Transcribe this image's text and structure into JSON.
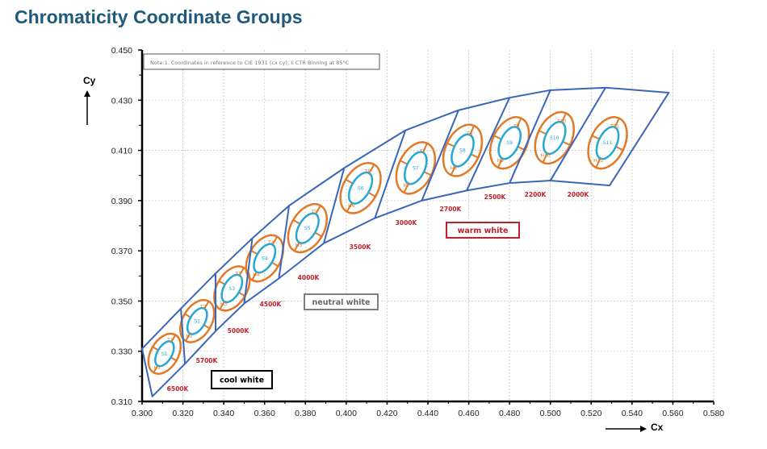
{
  "chart_data": {
    "type": "scatter",
    "title": "Chromaticity Coordinate Groups",
    "xlabel": "Cx",
    "ylabel": "Cy",
    "xlim": [
      0.3,
      0.58
    ],
    "ylim": [
      0.31,
      0.45
    ],
    "x_ticks": [
      "0.300",
      "0.320",
      "0.340",
      "0.360",
      "0.380",
      "0.400",
      "0.420",
      "0.440",
      "0.460",
      "0.480",
      "0.500",
      "0.520",
      "0.540",
      "0.560",
      "0.580"
    ],
    "y_ticks": [
      "0.450",
      "0.430",
      "0.410",
      "0.390",
      "0.370",
      "0.350",
      "0.330",
      "0.310"
    ],
    "grid": true,
    "note": "Note:1. Coordinates in reference to CIE 1931 (cx cy); Ii CTR Binning at 85°C",
    "boundary_upper": [
      [
        0.3,
        0.331
      ],
      [
        0.319,
        0.347
      ],
      [
        0.336,
        0.361
      ],
      [
        0.354,
        0.375
      ],
      [
        0.372,
        0.388
      ],
      [
        0.399,
        0.403
      ],
      [
        0.429,
        0.418
      ],
      [
        0.455,
        0.426
      ],
      [
        0.48,
        0.431
      ],
      [
        0.5,
        0.434
      ],
      [
        0.527,
        0.435
      ],
      [
        0.558,
        0.433
      ]
    ],
    "boundary_lower": [
      [
        0.305,
        0.312
      ],
      [
        0.321,
        0.325
      ],
      [
        0.336,
        0.338
      ],
      [
        0.35,
        0.349
      ],
      [
        0.367,
        0.359
      ],
      [
        0.389,
        0.373
      ],
      [
        0.414,
        0.383
      ],
      [
        0.437,
        0.39
      ],
      [
        0.459,
        0.394
      ],
      [
        0.48,
        0.397
      ],
      [
        0.5,
        0.398
      ],
      [
        0.529,
        0.396
      ]
    ],
    "cct_labels": [
      "6500K",
      "5700K",
      "5000K",
      "4500K",
      "4000K",
      "3500K",
      "3000K",
      "2700K",
      "2500K",
      "2200K",
      "2000K"
    ],
    "groups": [
      {
        "inner": "S1",
        "top": "T1",
        "bottom": "H1",
        "center": [
          0.311,
          0.329
        ]
      },
      {
        "inner": "S2",
        "top": "T2",
        "bottom": "H2",
        "center": [
          0.327,
          0.342
        ]
      },
      {
        "inner": "S3",
        "top": "T3",
        "bottom": "H3",
        "center": [
          0.344,
          0.355
        ]
      },
      {
        "inner": "S4",
        "top": "T4",
        "bottom": "H4",
        "center": [
          0.36,
          0.367
        ]
      },
      {
        "inner": "S5",
        "top": "T5",
        "bottom": "H5",
        "center": [
          0.381,
          0.379
        ]
      },
      {
        "inner": "S6",
        "top": "T6",
        "bottom": "H6",
        "center": [
          0.407,
          0.395
        ]
      },
      {
        "inner": "S7",
        "top": "T7",
        "bottom": "H7",
        "center": [
          0.434,
          0.403
        ]
      },
      {
        "inner": "S8",
        "top": "T8",
        "bottom": "H8",
        "center": [
          0.457,
          0.41
        ]
      },
      {
        "inner": "S9",
        "top": "T9",
        "bottom": "H9",
        "center": [
          0.48,
          0.413
        ]
      },
      {
        "inner": "S10",
        "top": "T10",
        "bottom": "H10",
        "center": [
          0.502,
          0.415
        ]
      },
      {
        "inner": "S11",
        "top": "T11",
        "bottom": "H11",
        "center": [
          0.528,
          0.413
        ]
      }
    ],
    "regions": [
      {
        "label": "cool white",
        "color": "#000000"
      },
      {
        "label": "neutral white",
        "color": "#7f7f7f"
      },
      {
        "label": "warm white",
        "color": "#c0202a"
      }
    ],
    "colors": {
      "boundary": "#3a66b8",
      "outer_ellipse": "#e07a28",
      "inner_ellipse": "#27a8d0",
      "cct_text": "#c0202a",
      "title": "#1f5a7a"
    }
  }
}
